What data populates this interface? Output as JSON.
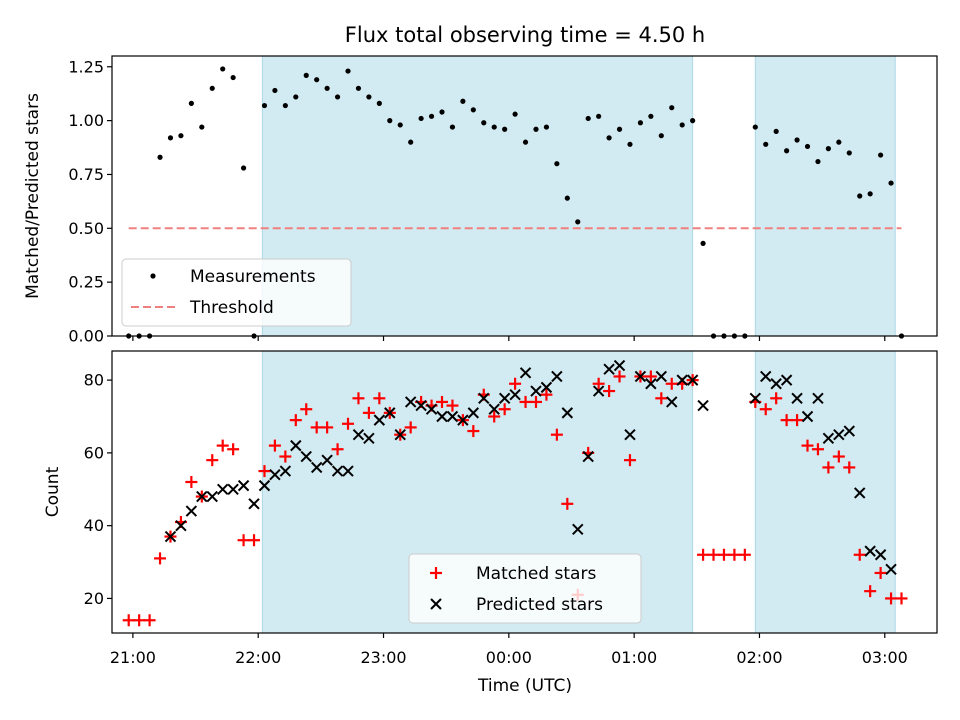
{
  "chart_data": [
    {
      "type": "scatter",
      "title": "Flux total observing time = 4.50 h",
      "xlabel": "",
      "ylabel": "Matched/Predicted stars",
      "ylim": [
        0,
        1.3
      ],
      "yticks": [
        "0.00",
        "0.25",
        "0.50",
        "0.75",
        "1.00",
        "1.25"
      ],
      "xlim": [
        "20:50",
        "03:25"
      ],
      "xticks": [],
      "shaded_regions": [
        [
          "22:02",
          "01:28"
        ],
        [
          "01:58",
          "03:05"
        ]
      ],
      "shade_color": "#add8e6",
      "legend": {
        "placement": "lower-left",
        "entries": [
          "Measurements",
          "Threshold"
        ]
      },
      "series": [
        {
          "name": "Measurements",
          "marker": "dot",
          "color": "#000000",
          "x": [
            "20:58",
            "21:03",
            "21:08",
            "21:13",
            "21:18",
            "21:23",
            "21:28",
            "21:33",
            "21:38",
            "21:43",
            "21:48",
            "21:53",
            "21:58",
            "22:03",
            "22:08",
            "22:13",
            "22:18",
            "22:23",
            "22:28",
            "22:33",
            "22:38",
            "22:43",
            "22:48",
            "22:53",
            "22:58",
            "23:03",
            "23:08",
            "23:13",
            "23:18",
            "23:23",
            "23:28",
            "23:33",
            "23:38",
            "23:43",
            "23:48",
            "23:53",
            "23:58",
            "00:03",
            "00:08",
            "00:13",
            "00:18",
            "00:23",
            "00:28",
            "00:33",
            "00:38",
            "00:43",
            "00:48",
            "00:53",
            "00:58",
            "01:03",
            "01:08",
            "01:13",
            "01:18",
            "01:23",
            "01:28",
            "01:33",
            "01:38",
            "01:43",
            "01:48",
            "01:53",
            "01:58",
            "02:03",
            "02:08",
            "02:13",
            "02:18",
            "02:23",
            "02:28",
            "02:33",
            "02:38",
            "02:43",
            "02:48",
            "02:53",
            "02:58",
            "03:03",
            "03:08"
          ],
          "y": [
            0.0,
            0.0,
            0.0,
            0.83,
            0.92,
            0.93,
            1.08,
            0.97,
            1.15,
            1.24,
            1.2,
            0.78,
            0.0,
            1.07,
            1.14,
            1.07,
            1.11,
            1.21,
            1.19,
            1.15,
            1.11,
            1.23,
            1.15,
            1.11,
            1.08,
            1.0,
            0.98,
            0.9,
            1.01,
            1.02,
            1.04,
            0.97,
            1.09,
            1.05,
            0.99,
            0.97,
            0.96,
            1.03,
            0.9,
            0.96,
            0.97,
            0.8,
            0.64,
            0.53,
            1.01,
            1.02,
            0.92,
            0.96,
            0.89,
            0.99,
            1.02,
            0.93,
            1.06,
            0.98,
            1.0,
            0.43,
            0.0,
            0.0,
            0.0,
            0.0,
            0.97,
            0.89,
            0.95,
            0.86,
            0.91,
            0.88,
            0.81,
            0.87,
            0.9,
            0.85,
            0.65,
            0.66,
            0.84,
            0.71,
            0.0
          ]
        },
        {
          "name": "Threshold",
          "style": "dashed",
          "color": "#f08080",
          "x": [
            "20:58",
            "03:08"
          ],
          "y": [
            0.5,
            0.5
          ]
        }
      ]
    },
    {
      "type": "scatter",
      "title": "",
      "xlabel": "Time (UTC)",
      "ylabel": "Count",
      "ylim": [
        10.5,
        88
      ],
      "yticks": [
        "20",
        "40",
        "60",
        "80"
      ],
      "xlim": [
        "20:50",
        "03:25"
      ],
      "xticks": [
        "21:00",
        "22:00",
        "23:00",
        "00:00",
        "01:00",
        "02:00",
        "03:00"
      ],
      "shaded_regions": [
        [
          "22:02",
          "01:28"
        ],
        [
          "01:58",
          "03:05"
        ]
      ],
      "shade_color": "#add8e6",
      "legend": {
        "placement": "lower-center",
        "entries": [
          "Matched stars",
          "Predicted stars"
        ]
      },
      "series": [
        {
          "name": "Matched stars",
          "marker": "plus",
          "color": "#ff0000",
          "x": [
            "20:58",
            "21:03",
            "21:08",
            "21:13",
            "21:18",
            "21:23",
            "21:28",
            "21:33",
            "21:38",
            "21:43",
            "21:48",
            "21:53",
            "21:58",
            "22:03",
            "22:08",
            "22:13",
            "22:18",
            "22:23",
            "22:28",
            "22:33",
            "22:38",
            "22:43",
            "22:48",
            "22:53",
            "22:58",
            "23:03",
            "23:08",
            "23:13",
            "23:18",
            "23:23",
            "23:28",
            "23:33",
            "23:38",
            "23:43",
            "23:48",
            "23:53",
            "23:58",
            "00:03",
            "00:08",
            "00:13",
            "00:18",
            "00:23",
            "00:28",
            "00:33",
            "00:38",
            "00:43",
            "00:48",
            "00:53",
            "00:58",
            "01:03",
            "01:08",
            "01:13",
            "01:18",
            "01:23",
            "01:28",
            "01:33",
            "01:38",
            "01:43",
            "01:48",
            "01:53",
            "01:58",
            "02:03",
            "02:08",
            "02:13",
            "02:18",
            "02:23",
            "02:28",
            "02:33",
            "02:38",
            "02:43",
            "02:48",
            "02:53",
            "02:58",
            "03:03",
            "03:08"
          ],
          "y": [
            14,
            14,
            14,
            31,
            37,
            41,
            52,
            48,
            58,
            62,
            61,
            36,
            36,
            55,
            62,
            59,
            69,
            72,
            67,
            67,
            61,
            68,
            75,
            71,
            75,
            71,
            65,
            67,
            74,
            73,
            74,
            73,
            69,
            66,
            76,
            70,
            72,
            79,
            74,
            74,
            76,
            65,
            46,
            21,
            60,
            79,
            77,
            81,
            58,
            81,
            81,
            75,
            79,
            79,
            80,
            32,
            32,
            32,
            32,
            32,
            74,
            72,
            75,
            69,
            69,
            62,
            61,
            56,
            59,
            56,
            32,
            22,
            27,
            20,
            20
          ]
        },
        {
          "name": "Predicted stars",
          "marker": "x",
          "color": "#000000",
          "x": [
            "21:18",
            "21:23",
            "21:28",
            "21:33",
            "21:38",
            "21:43",
            "21:48",
            "21:53",
            "21:58",
            "22:03",
            "22:08",
            "22:13",
            "22:18",
            "22:23",
            "22:28",
            "22:33",
            "22:38",
            "22:43",
            "22:48",
            "22:53",
            "22:58",
            "23:03",
            "23:08",
            "23:13",
            "23:18",
            "23:23",
            "23:28",
            "23:33",
            "23:38",
            "23:43",
            "23:48",
            "23:53",
            "23:58",
            "00:03",
            "00:08",
            "00:13",
            "00:18",
            "00:23",
            "00:28",
            "00:33",
            "00:38",
            "00:43",
            "00:48",
            "00:53",
            "00:58",
            "01:03",
            "01:08",
            "01:13",
            "01:18",
            "01:23",
            "01:28",
            "01:33",
            "01:58",
            "02:03",
            "02:08",
            "02:13",
            "02:18",
            "02:23",
            "02:28",
            "02:33",
            "02:38",
            "02:43",
            "02:48",
            "02:53",
            "02:58",
            "03:03"
          ],
          "y": [
            37,
            40,
            44,
            48,
            48,
            50,
            50,
            51,
            46,
            51,
            54,
            55,
            62,
            59,
            56,
            58,
            55,
            55,
            65,
            64,
            69,
            71,
            65,
            74,
            73,
            72,
            70,
            70,
            69,
            71,
            75,
            72,
            75,
            76,
            82,
            77,
            78,
            81,
            71,
            39,
            59,
            77,
            83,
            84,
            65,
            81,
            79,
            81,
            74,
            80,
            80,
            73,
            75,
            81,
            79,
            80,
            75,
            70,
            75,
            64,
            65,
            66,
            49,
            33,
            32,
            28
          ]
        }
      ]
    }
  ]
}
